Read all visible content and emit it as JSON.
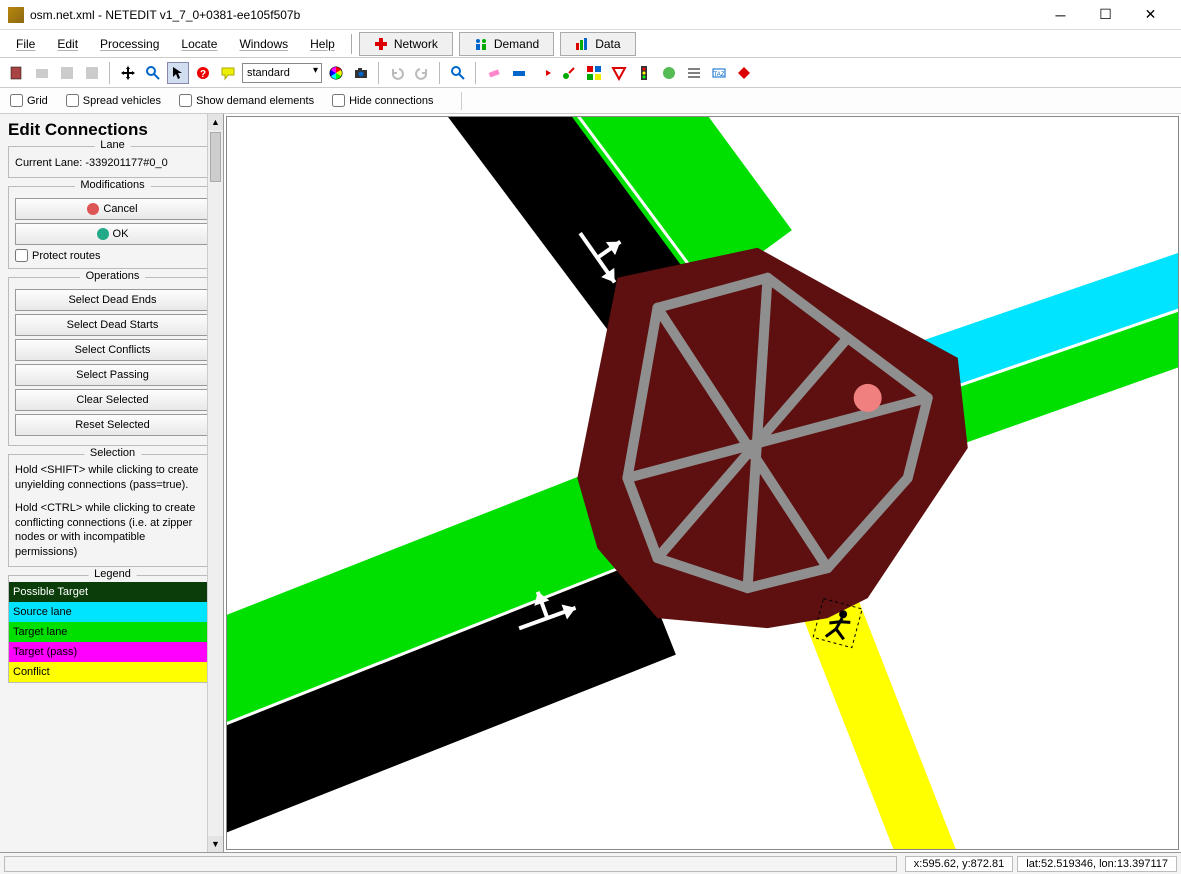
{
  "window": {
    "title": "osm.net.xml - NETEDIT v1_7_0+0381-ee105f507b"
  },
  "menubar": {
    "items": [
      "File",
      "Edit",
      "Processing",
      "Locate",
      "Windows",
      "Help"
    ],
    "modes": [
      {
        "label": "Network",
        "icon": "plus-red"
      },
      {
        "label": "Demand",
        "icon": "people-blue"
      },
      {
        "label": "Data",
        "icon": "bars-multi"
      }
    ]
  },
  "toolbar": {
    "combo_value": "standard"
  },
  "options": {
    "grid": "Grid",
    "spread": "Spread vehicles",
    "showdemand": "Show demand elements",
    "hideconn": "Hide connections"
  },
  "panel": {
    "title": "Edit Connections",
    "lane_group": "Lane",
    "current_lane_label": "Current Lane: -339201177#0_0",
    "mods_group": "Modifications",
    "cancel": "Cancel",
    "ok": "OK",
    "protect": "Protect routes",
    "ops_group": "Operations",
    "ops": [
      "Select Dead Ends",
      "Select Dead Starts",
      "Select Conflicts",
      "Select Passing",
      "Clear Selected",
      "Reset Selected"
    ],
    "sel_group": "Selection",
    "help1": "Hold <SHIFT> while clicking to create unyielding connections (pass=true).",
    "help2": "Hold <CTRL> while clicking to create conflicting connections (i.e. at zipper nodes or with incompatible permissions)",
    "legend_group": "Legend",
    "legend": [
      {
        "label": "Possible Target",
        "bg": "#0b3d0b",
        "fg": "#ffffff"
      },
      {
        "label": "Source lane",
        "bg": "#00e4ff",
        "fg": "#000000"
      },
      {
        "label": "Target lane",
        "bg": "#00e000",
        "fg": "#000000"
      },
      {
        "label": "Target (pass)",
        "bg": "#ff00ff",
        "fg": "#000000"
      },
      {
        "label": "Conflict",
        "bg": "#ffff00",
        "fg": "#000000"
      }
    ]
  },
  "status": {
    "xy": "x:595.62, y:872.81",
    "latlon": "lat:52.519346, lon:13.397117"
  },
  "colors": {
    "junction": "#5e0f0f",
    "road_black": "#000000",
    "lane_green": "#00e000",
    "source_cyan": "#00e4ff",
    "conflict_yellow": "#ffff00",
    "conn_gray": "#8f8f8f",
    "arrow_white": "#ffffff",
    "dot_pink": "#f08080"
  }
}
